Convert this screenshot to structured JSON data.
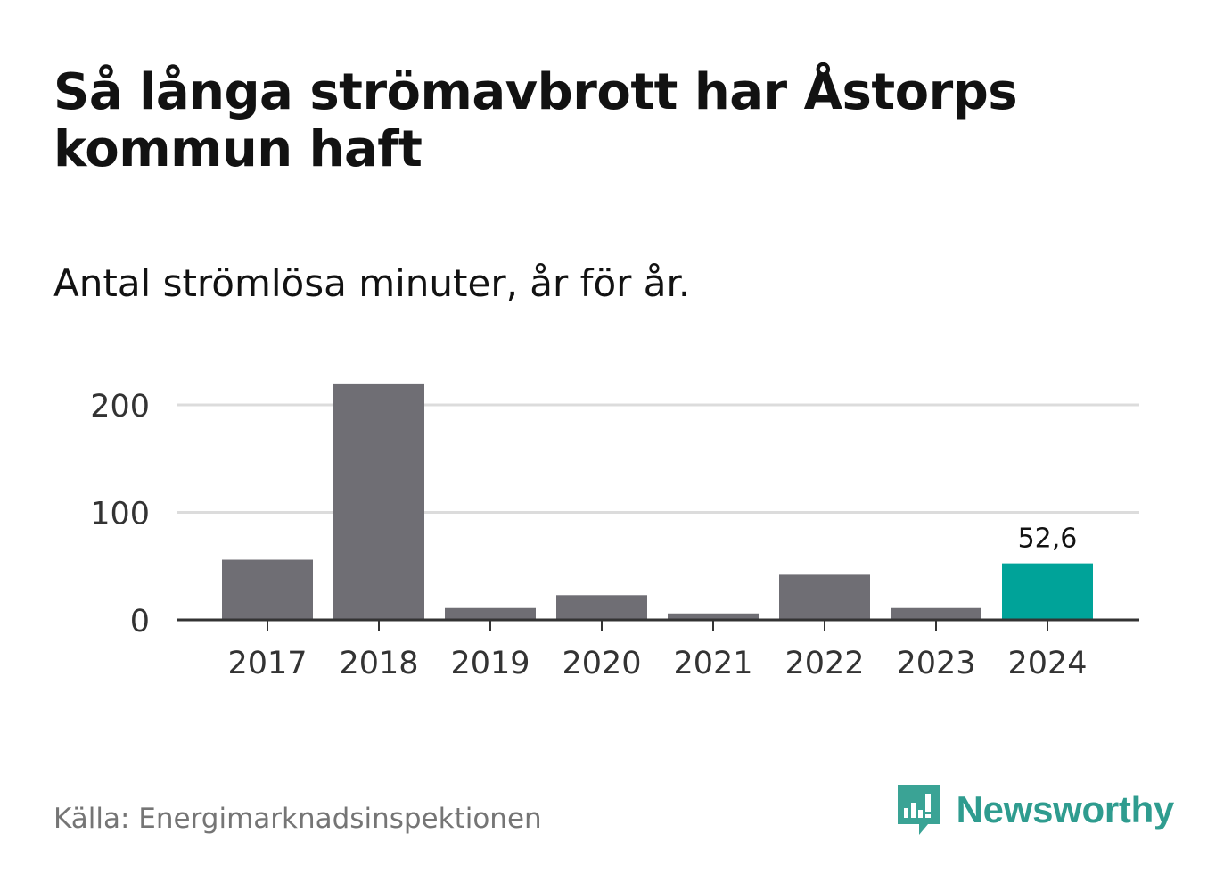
{
  "title": "Så långa strömavbrott har Åstorps kommun haft",
  "subtitle": "Antal strömlösa minuter, år för år.",
  "source": "Källa: Energimarknadsinspektionen",
  "brand": {
    "name": "Newsworthy",
    "icon": "newsworthy-logo-icon",
    "color": "#2f9c8f"
  },
  "colors": {
    "bar": "#6f6e74",
    "highlight": "#00a399",
    "grid": "#dcdcdc",
    "axis": "#333333"
  },
  "chart_data": {
    "type": "bar",
    "title": "Så långa strömavbrott har Åstorps kommun haft",
    "subtitle": "Antal strömlösa minuter, år för år.",
    "xlabel": "",
    "ylabel": "",
    "categories": [
      "2017",
      "2018",
      "2019",
      "2020",
      "2021",
      "2022",
      "2023",
      "2024"
    ],
    "values": [
      56,
      220,
      11,
      23,
      6,
      42,
      11,
      52.6
    ],
    "highlight_index": 7,
    "data_labels": [
      {
        "index": 7,
        "text": "52,6"
      }
    ],
    "yticks": [
      0,
      100,
      200
    ],
    "ytick_labels": [
      "0",
      "100",
      "200"
    ],
    "ylim": [
      0,
      220
    ],
    "grid": true
  }
}
